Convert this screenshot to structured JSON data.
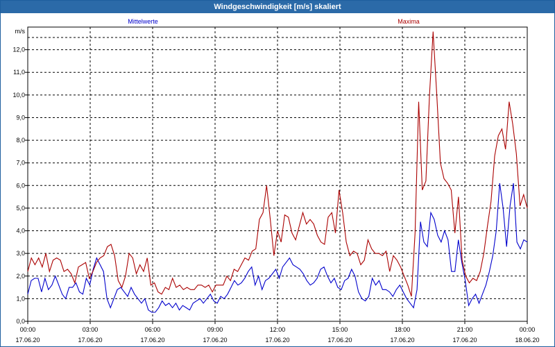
{
  "window": {
    "title": "Windgeschwindigkeit [m/s] skaliert"
  },
  "chart_data": {
    "type": "line",
    "title": "Windgeschwindigkeit [m/s] skaliert",
    "ylabel": "m/s",
    "ylim": [
      0,
      13
    ],
    "yticks": [
      "0,0",
      "1,0",
      "2,0",
      "3,0",
      "4,0",
      "5,0",
      "6,0",
      "7,0",
      "8,0",
      "9,0",
      "10,0",
      "11,0",
      "12,0"
    ],
    "xlim": [
      "17.06.20 00:00",
      "18.06.20 00:00"
    ],
    "xticks": [
      {
        "time": "00:00",
        "date": "17.06.20"
      },
      {
        "time": "03:00",
        "date": "17.06.20"
      },
      {
        "time": "06:00",
        "date": "17.06.20"
      },
      {
        "time": "09:00",
        "date": "17.06.20"
      },
      {
        "time": "12:00",
        "date": "17.06.20"
      },
      {
        "time": "15:00",
        "date": "17.06.20"
      },
      {
        "time": "18:00",
        "date": "17.06.20"
      },
      {
        "time": "21:00",
        "date": "17.06.20"
      },
      {
        "time": "00:00",
        "date": "18.06.20"
      }
    ],
    "grid": true,
    "series": [
      {
        "name": "Mittelwerte",
        "color": "#0000cc",
        "legend": "top-left",
        "values": [
          1.2,
          1.8,
          1.9,
          1.9,
          1.3,
          1.9,
          1.4,
          1.6,
          2.0,
          1.6,
          1.2,
          1.0,
          1.5,
          1.5,
          1.7,
          1.3,
          1.2,
          1.9,
          1.6,
          2.3,
          2.8,
          2.5,
          2.2,
          1.0,
          0.6,
          1.0,
          1.4,
          1.5,
          1.3,
          1.1,
          1.5,
          1.2,
          1.0,
          0.8,
          1.0,
          0.5,
          0.4,
          0.4,
          0.6,
          0.9,
          0.7,
          0.8,
          0.6,
          0.8,
          0.5,
          0.7,
          0.6,
          0.5,
          0.8,
          0.9,
          1.0,
          0.8,
          1.0,
          1.2,
          0.9,
          0.8,
          1.1,
          1.0,
          1.2,
          1.5,
          1.8,
          1.6,
          1.7,
          1.9,
          2.2,
          2.4,
          1.6,
          2.0,
          1.4,
          1.8,
          1.9,
          2.1,
          2.3,
          1.9,
          2.4,
          2.6,
          2.8,
          2.5,
          2.4,
          2.3,
          2.1,
          1.8,
          1.6,
          1.7,
          1.9,
          2.3,
          2.4,
          2.0,
          1.7,
          1.9,
          1.5,
          1.4,
          1.8,
          1.9,
          2.3,
          2.0,
          1.3,
          1.0,
          0.9,
          1.1,
          1.9,
          1.6,
          1.8,
          1.4,
          1.4,
          1.3,
          1.1,
          1.4,
          1.6,
          1.3,
          1.0,
          0.8,
          0.6,
          1.4,
          4.4,
          3.5,
          3.3,
          4.8,
          4.5,
          3.8,
          3.5,
          4.0,
          3.6,
          2.2,
          2.2,
          3.6,
          2.6,
          1.8,
          0.7,
          1.0,
          1.2,
          0.8,
          1.2,
          1.6,
          2.2,
          2.9,
          4.0,
          6.1,
          5.0,
          3.3,
          5.1,
          6.1,
          3.5,
          3.2,
          3.6,
          3.5
        ]
      },
      {
        "name": "Maxima",
        "color": "#aa0000",
        "legend": "top-right",
        "values": [
          2.2,
          2.8,
          2.5,
          2.8,
          2.4,
          3.0,
          2.2,
          2.7,
          2.8,
          2.7,
          2.2,
          2.3,
          2.1,
          1.7,
          2.4,
          2.5,
          2.6,
          1.9,
          2.2,
          2.6,
          2.8,
          2.9,
          3.3,
          3.4,
          2.9,
          1.8,
          1.5,
          2.0,
          3.0,
          2.8,
          2.1,
          2.5,
          2.2,
          2.8,
          1.6,
          1.7,
          1.3,
          1.2,
          1.5,
          1.4,
          1.9,
          1.5,
          1.6,
          1.4,
          1.5,
          1.4,
          1.4,
          1.6,
          1.6,
          1.5,
          1.6,
          1.3,
          1.6,
          1.6,
          1.6,
          2.0,
          1.8,
          2.3,
          2.2,
          2.5,
          2.8,
          2.7,
          3.1,
          3.2,
          4.5,
          4.8,
          6.0,
          4.5,
          2.9,
          4.0,
          3.5,
          4.7,
          4.6,
          3.9,
          3.6,
          4.2,
          4.8,
          4.3,
          4.5,
          4.3,
          3.8,
          3.5,
          3.4,
          4.6,
          4.8,
          3.9,
          5.8,
          4.8,
          3.5,
          2.9,
          3.1,
          3.0,
          2.5,
          2.7,
          3.6,
          3.2,
          3.0,
          3.0,
          2.9,
          3.1,
          2.2,
          2.9,
          2.7,
          2.4,
          2.0,
          1.6,
          1.1,
          3.9,
          9.7,
          5.8,
          6.2,
          10.0,
          12.8,
          10.0,
          7.0,
          6.3,
          6.1,
          5.8,
          3.9,
          5.5,
          2.7,
          2.0,
          1.7,
          1.9,
          1.8,
          2.2,
          3.0,
          4.2,
          5.3,
          7.3,
          8.2,
          8.5,
          7.6,
          9.7,
          8.7,
          7.4,
          5.1,
          5.6,
          5.0
        ]
      }
    ]
  }
}
